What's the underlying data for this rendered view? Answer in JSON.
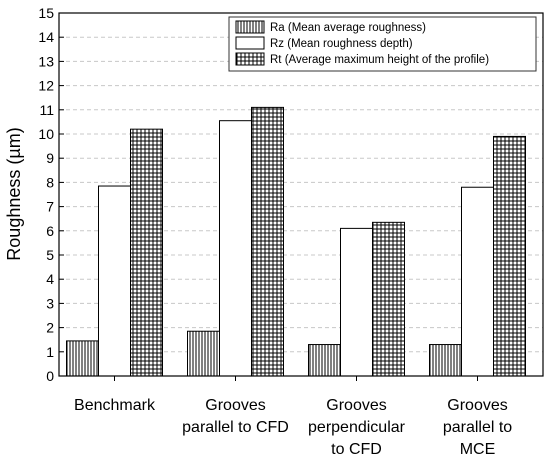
{
  "chart_data": {
    "type": "bar",
    "title": "",
    "xlabel": "",
    "ylabel": "Roughness (µm)",
    "ylim": [
      0,
      15
    ],
    "ytick_step": 1,
    "grid": true,
    "grid_style": "dashed horizontal",
    "legend_position": "top-right",
    "categories": [
      [
        "Benchmark"
      ],
      [
        "Grooves",
        "parallel to CFD"
      ],
      [
        "Grooves",
        "perpendicular",
        "to CFD"
      ],
      [
        "Grooves",
        "parallel to",
        "MCE"
      ]
    ],
    "series": [
      {
        "name": "Ra (Mean average roughness)",
        "pattern": "vertical-lines",
        "values": [
          1.45,
          1.85,
          1.3,
          1.3
        ]
      },
      {
        "name": "Rz (Mean roughness depth)",
        "pattern": "empty",
        "values": [
          7.85,
          10.55,
          6.1,
          7.8
        ]
      },
      {
        "name": "Rt (Average maximum height of the profile)",
        "pattern": "crosshatch",
        "values": [
          10.2,
          11.1,
          6.35,
          9.9
        ]
      }
    ],
    "colors": {
      "line": "#000000",
      "grid": "#c8c8c8",
      "background": "#ffffff"
    }
  }
}
